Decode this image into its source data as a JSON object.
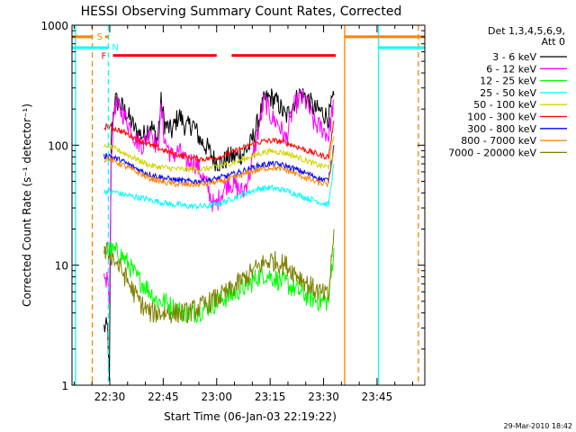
{
  "chart_data": {
    "type": "line",
    "title": "HESSI Observing Summary Count Rates, Corrected",
    "xlabel": "Start Time (06-Jan-03 22:19:22)",
    "ylabel": "Corrected Count Rate (s⁻¹ detector⁻¹)",
    "x_unit": "minutes after 22:19:22",
    "xlim": [
      0,
      99
    ],
    "ylim": [
      1,
      1000
    ],
    "y_scale": "log",
    "x_ticks": [
      {
        "t": 10.6,
        "label": "22:30"
      },
      {
        "t": 25.6,
        "label": "22:45"
      },
      {
        "t": 40.6,
        "label": "23:00"
      },
      {
        "t": 55.6,
        "label": "23:15"
      },
      {
        "t": 70.6,
        "label": "23:30"
      },
      {
        "t": 85.6,
        "label": "23:45"
      }
    ],
    "y_ticks": [
      {
        "v": 1,
        "label": "1"
      },
      {
        "v": 10,
        "label": "10"
      },
      {
        "v": 100,
        "label": "100"
      },
      {
        "v": 1000,
        "label": "1000"
      }
    ],
    "legend_header": [
      "Det 1,3,4,5,6,9,",
      "Att 0"
    ],
    "legend_position": "right",
    "series": [
      {
        "name": "3 - 6 keV",
        "color": "#000000",
        "t": [
          9,
          10,
          10.5,
          11,
          12,
          14,
          16,
          18,
          20,
          22,
          24,
          25,
          26,
          28,
          30,
          32,
          34,
          36,
          38,
          40,
          42,
          44,
          46,
          48,
          50,
          52,
          54,
          56,
          58,
          60,
          62,
          64,
          66,
          68,
          70,
          72,
          73.5
        ],
        "v": [
          3,
          3,
          1,
          120,
          240,
          210,
          170,
          130,
          120,
          150,
          110,
          230,
          150,
          130,
          180,
          140,
          150,
          110,
          95,
          75,
          70,
          80,
          80,
          85,
          100,
          150,
          240,
          250,
          220,
          170,
          220,
          270,
          250,
          200,
          190,
          170,
          260
        ]
      },
      {
        "name": "6 - 12 keV",
        "color": "#ff00ff",
        "t": [
          9,
          10,
          10.5,
          11,
          12,
          14,
          16,
          18,
          20,
          22,
          24,
          25,
          26,
          28,
          30,
          32,
          34,
          36,
          38,
          40,
          42,
          44,
          46,
          48,
          50,
          52,
          54,
          56,
          58,
          60,
          62,
          64,
          66,
          68,
          70,
          72,
          73.5
        ],
        "v": [
          7,
          8,
          4,
          80,
          220,
          190,
          150,
          110,
          100,
          140,
          90,
          200,
          110,
          80,
          90,
          70,
          75,
          60,
          45,
          30,
          40,
          50,
          45,
          40,
          60,
          120,
          240,
          170,
          150,
          110,
          200,
          250,
          220,
          150,
          140,
          120,
          240
        ]
      },
      {
        "name": "12 - 25 keV",
        "color": "#00ff00",
        "t": [
          9,
          10,
          11,
          12,
          14,
          16,
          18,
          20,
          22,
          24,
          26,
          28,
          30,
          32,
          34,
          36,
          38,
          40,
          42,
          44,
          46,
          48,
          50,
          52,
          54,
          56,
          58,
          60,
          62,
          64,
          66,
          68,
          70,
          72,
          73.5
        ],
        "v": [
          12,
          14,
          13,
          13,
          12,
          10,
          8,
          7,
          6,
          5,
          5,
          4.5,
          4.2,
          4,
          4,
          4.2,
          4.5,
          4.8,
          5.2,
          5.5,
          6,
          6.5,
          7,
          8,
          8.5,
          8,
          7.5,
          7,
          6.5,
          6,
          5.5,
          5.2,
          5,
          5,
          14
        ]
      },
      {
        "name": "25 - 50 keV",
        "color": "#00ffff",
        "t": [
          9,
          10,
          11,
          12,
          14,
          16,
          18,
          20,
          22,
          24,
          26,
          28,
          30,
          32,
          34,
          36,
          38,
          40,
          42,
          44,
          46,
          48,
          50,
          52,
          54,
          56,
          58,
          60,
          62,
          64,
          66,
          68,
          70,
          72,
          73.5
        ],
        "v": [
          40,
          42,
          40,
          41,
          39,
          38,
          37,
          36,
          35,
          34,
          33,
          32,
          32,
          31,
          31,
          31,
          31,
          32,
          33,
          35,
          37,
          39,
          41,
          43,
          44,
          44,
          43,
          42,
          40,
          38,
          36,
          35,
          33,
          32,
          70
        ]
      },
      {
        "name": "50 - 100 keV",
        "color": "#d4d400",
        "t": [
          9,
          10,
          11,
          12,
          14,
          16,
          18,
          20,
          22,
          24,
          26,
          28,
          30,
          32,
          34,
          36,
          38,
          40,
          42,
          44,
          46,
          48,
          50,
          52,
          54,
          56,
          58,
          60,
          62,
          64,
          66,
          68,
          70,
          72,
          73.5
        ],
        "v": [
          95,
          100,
          95,
          93,
          88,
          82,
          77,
          72,
          68,
          66,
          65,
          64,
          63,
          63,
          63,
          63,
          64,
          66,
          68,
          70,
          73,
          76,
          80,
          84,
          88,
          89,
          88,
          86,
          82,
          78,
          74,
          70,
          67,
          66,
          120
        ]
      },
      {
        "name": "100 - 300 keV",
        "color": "#ff0000",
        "t": [
          9,
          10,
          11,
          12,
          14,
          16,
          18,
          20,
          22,
          24,
          26,
          28,
          30,
          32,
          34,
          36,
          38,
          40,
          42,
          44,
          46,
          48,
          50,
          52,
          54,
          56,
          58,
          60,
          62,
          64,
          66,
          68,
          70,
          72,
          73.5
        ],
        "v": [
          140,
          145,
          140,
          138,
          130,
          122,
          113,
          106,
          100,
          95,
          90,
          86,
          83,
          80,
          78,
          77,
          77,
          78,
          81,
          85,
          90,
          95,
          100,
          105,
          108,
          109,
          108,
          105,
          100,
          95,
          90,
          86,
          82,
          80,
          160
        ]
      },
      {
        "name": "300 - 800 keV",
        "color": "#0000ff",
        "t": [
          9,
          10,
          11,
          12,
          14,
          16,
          18,
          20,
          22,
          24,
          26,
          28,
          30,
          32,
          34,
          36,
          38,
          40,
          42,
          44,
          46,
          48,
          50,
          52,
          54,
          56,
          58,
          60,
          62,
          64,
          66,
          68,
          70,
          72,
          73.5
        ],
        "v": [
          80,
          84,
          80,
          78,
          74,
          69,
          64,
          60,
          57,
          55,
          53,
          52,
          51,
          50,
          50,
          50,
          51,
          52,
          54,
          56,
          58,
          61,
          64,
          67,
          69,
          70,
          69,
          67,
          64,
          61,
          58,
          55,
          52,
          51,
          100
        ]
      },
      {
        "name": "800 - 7000 keV",
        "color": "#ff8000",
        "t": [
          9,
          10,
          11,
          12,
          14,
          16,
          18,
          20,
          22,
          24,
          26,
          28,
          30,
          32,
          34,
          36,
          38,
          40,
          42,
          44,
          46,
          48,
          50,
          52,
          54,
          56,
          58,
          60,
          62,
          64,
          66,
          68,
          70,
          72,
          73.5
        ],
        "v": [
          75,
          78,
          75,
          73,
          69,
          64,
          60,
          56,
          53,
          51,
          49,
          48,
          47,
          47,
          47,
          47,
          48,
          49,
          50,
          52,
          54,
          57,
          60,
          62,
          64,
          65,
          64,
          62,
          59,
          56,
          53,
          50,
          48,
          47,
          95
        ]
      },
      {
        "name": "7000 - 20000 keV",
        "color": "#808000",
        "t": [
          9,
          10,
          11,
          12,
          14,
          16,
          18,
          20,
          22,
          24,
          26,
          28,
          30,
          32,
          34,
          36,
          38,
          40,
          42,
          44,
          46,
          48,
          50,
          52,
          54,
          56,
          58,
          60,
          62,
          64,
          66,
          68,
          70,
          72,
          73.5
        ],
        "v": [
          12,
          13,
          12,
          11,
          9,
          7,
          5.5,
          4.5,
          4,
          4,
          4,
          4,
          4,
          4,
          4.2,
          4.5,
          4.8,
          5.2,
          5.6,
          6,
          6.8,
          7.6,
          8.5,
          9.5,
          10.5,
          11,
          10.5,
          10,
          9,
          8,
          7,
          6.3,
          5.8,
          5.5,
          20
        ]
      }
    ],
    "bars": [
      {
        "label": "S",
        "color": "#ff8000",
        "v": 800,
        "segments": [
          [
            0,
            5.7
          ],
          [
            9.3,
            10.2
          ]
        ]
      },
      {
        "label": "N",
        "color": "#00ffff",
        "v": 650,
        "segments": [
          [
            0,
            10.2
          ]
        ]
      },
      {
        "label": "F",
        "color": "#ff0000",
        "v": 560,
        "segments": [
          [
            11.5,
            40.6
          ],
          [
            44.8,
            74
          ]
        ]
      }
    ],
    "right_bars": [
      {
        "color": "#ff8000",
        "v": 800,
        "segments": [
          [
            76.5,
            99
          ]
        ]
      },
      {
        "color": "#00ffff",
        "v": 650,
        "segments": [
          [
            86,
            99
          ]
        ]
      }
    ],
    "vlines": [
      {
        "t": 1,
        "color": "#00ffff",
        "style": "solid"
      },
      {
        "t": 5.7,
        "color": "#ff8000",
        "style": "dashed"
      },
      {
        "t": 10.2,
        "color": "#00ffff",
        "style": "dashed"
      },
      {
        "t": 76.5,
        "color": "#ff8000",
        "style": "solid"
      },
      {
        "t": 86,
        "color": "#00ffff",
        "style": "solid"
      },
      {
        "t": 97.2,
        "color": "#ff8000",
        "style": "dashed"
      }
    ]
  },
  "footer_stamp": "29-Mar-2010 18:42"
}
